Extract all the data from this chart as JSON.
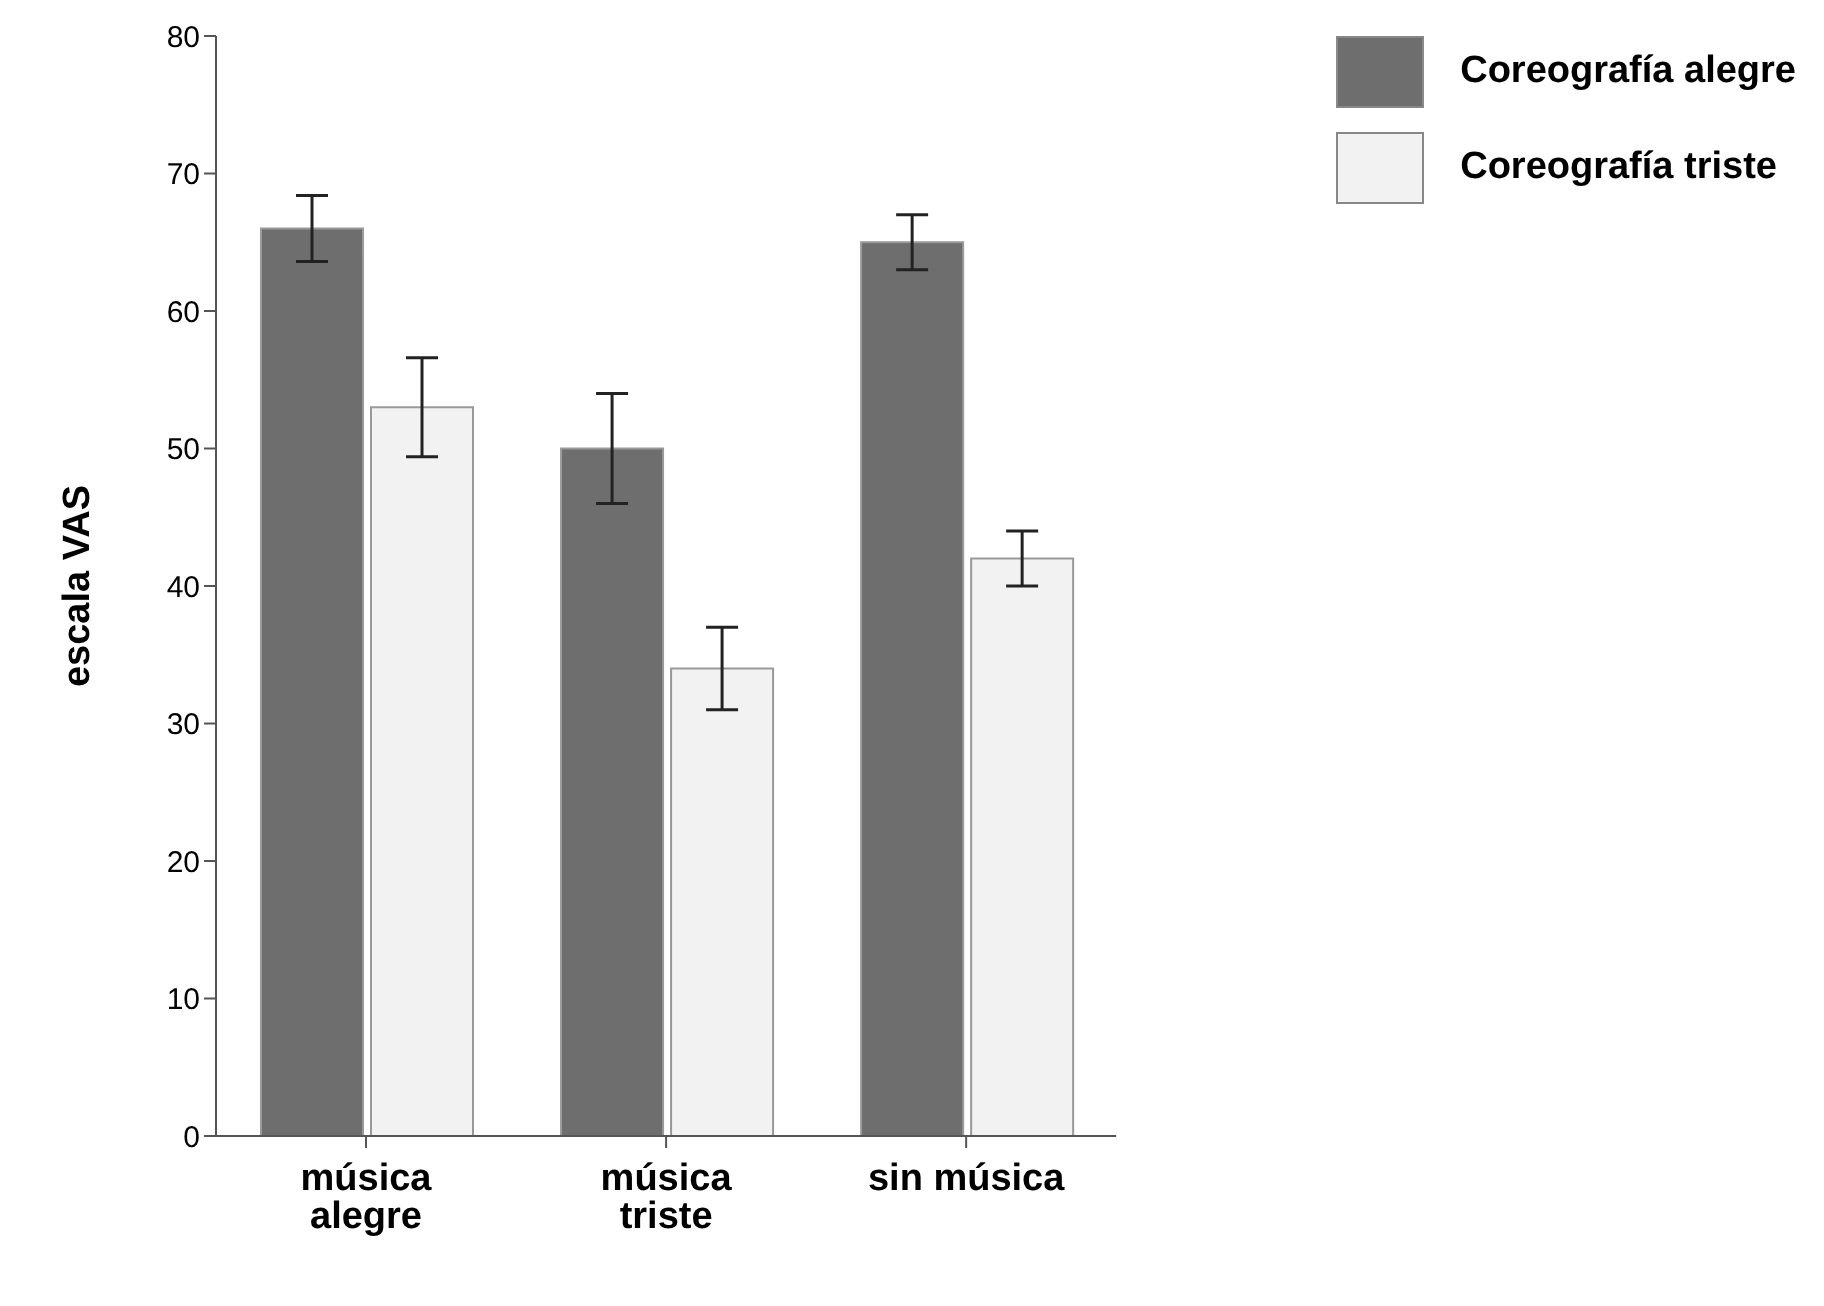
{
  "chart_data": {
    "type": "bar",
    "ylabel": "escala VAS",
    "categories": [
      "música alegre",
      "música triste",
      "sin música"
    ],
    "series": [
      {
        "name": "Coreografía alegre",
        "color": "#6e6e6e",
        "values": [
          66,
          50,
          65
        ],
        "errors": [
          2.4,
          4,
          2
        ]
      },
      {
        "name": "Coreografía triste",
        "color": "#f2f2f2",
        "values": [
          53,
          34,
          42
        ],
        "errors": [
          3.6,
          3,
          2
        ]
      }
    ],
    "ylim": [
      0,
      80
    ],
    "yticks": [
      0,
      10,
      20,
      30,
      40,
      50,
      60,
      70,
      80
    ],
    "grid": false,
    "legend": "top right"
  }
}
